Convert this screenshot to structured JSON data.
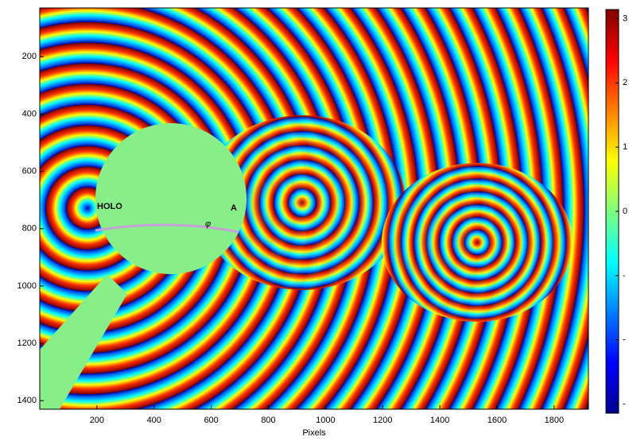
{
  "chart_data": {
    "type": "image",
    "xlabel": "Pixels",
    "xlim": [
      0,
      1920
    ],
    "xticks": [
      200,
      400,
      600,
      800,
      1000,
      1200,
      1400,
      1600,
      1800
    ],
    "ylim": [
      30,
      1430
    ],
    "y_reversed": true,
    "yticks": [
      200,
      400,
      600,
      800,
      1000,
      1200,
      1400
    ],
    "colorbar": {
      "lim": [
        -3.14159,
        3.14159
      ],
      "ticks": [
        {
          "value": 3,
          "label": "3"
        },
        {
          "value": 2,
          "label": "2"
        },
        {
          "value": 1,
          "label": "1"
        },
        {
          "value": 0,
          "label": "0"
        },
        {
          "value": -1,
          "label": "-"
        },
        {
          "value": -2,
          "label": "-"
        },
        {
          "value": -3,
          "label": "-"
        }
      ]
    },
    "logo": {
      "text": "HOLO",
      "symbol": "φ",
      "superscript": "A"
    }
  }
}
